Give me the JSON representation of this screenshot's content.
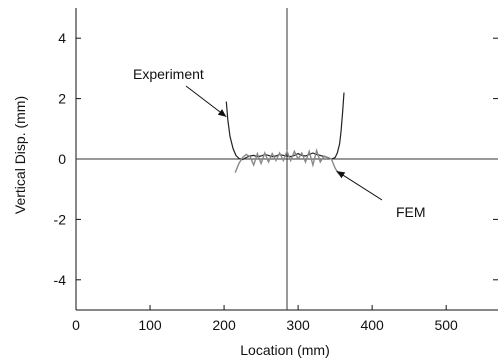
{
  "chart_data": {
    "type": "line",
    "title": "",
    "xlabel": "Location (mm)",
    "ylabel": "Vertical Disp. (mm)",
    "xlim": [
      0,
      570
    ],
    "ylim": [
      -5,
      5
    ],
    "xticks": [
      0,
      100,
      200,
      300,
      400,
      500
    ],
    "yticks": [
      -4,
      -2,
      0,
      2,
      4
    ],
    "grid": false,
    "reference_lines": {
      "y": 0,
      "x": 285
    },
    "series": [
      {
        "name": "Experiment",
        "color": "#222222",
        "x": [
          203,
          205,
          208,
          212,
          216,
          220,
          225,
          230,
          235,
          240,
          245,
          250,
          255,
          260,
          265,
          270,
          275,
          280,
          285,
          290,
          295,
          300,
          305,
          310,
          315,
          320,
          325,
          330,
          335,
          340,
          345,
          350,
          353,
          356,
          358,
          360,
          362
        ],
        "y": [
          1.9,
          1.3,
          0.75,
          0.35,
          0.12,
          0.02,
          -0.02,
          0.05,
          0.1,
          0.12,
          0.08,
          0.1,
          0.15,
          0.12,
          0.08,
          0.1,
          0.15,
          0.12,
          0.1,
          0.08,
          0.12,
          0.18,
          0.12,
          0.1,
          0.15,
          0.2,
          0.15,
          0.12,
          0.08,
          0.05,
          0.0,
          0.05,
          0.2,
          0.5,
          0.9,
          1.5,
          2.2
        ]
      },
      {
        "name": "FEM",
        "color": "#888888",
        "x": [
          215,
          220,
          225,
          230,
          235,
          240,
          245,
          250,
          255,
          260,
          265,
          270,
          275,
          280,
          285,
          290,
          295,
          300,
          305,
          310,
          315,
          320,
          325,
          330,
          335,
          340,
          345,
          350,
          355
        ],
        "y": [
          -0.45,
          -0.15,
          0.05,
          0.15,
          0.08,
          -0.2,
          0.18,
          -0.15,
          0.2,
          -0.1,
          0.18,
          -0.05,
          0.2,
          -0.05,
          0.25,
          -0.05,
          0.25,
          0.0,
          0.2,
          -0.1,
          0.25,
          -0.2,
          0.28,
          -0.1,
          0.1,
          0.05,
          0.0,
          -0.3,
          -0.5
        ]
      }
    ],
    "annotations": [
      {
        "text": "Experiment",
        "series": "Experiment",
        "arrow_to": [
          203,
          1.4
        ]
      },
      {
        "text": "FEM",
        "series": "FEM",
        "arrow_to": [
          352,
          -0.4
        ]
      }
    ]
  }
}
